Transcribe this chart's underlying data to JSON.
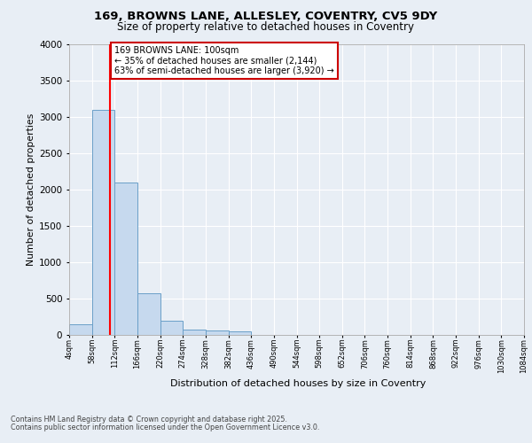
{
  "title_line1": "169, BROWNS LANE, ALLESLEY, COVENTRY, CV5 9DY",
  "title_line2": "Size of property relative to detached houses in Coventry",
  "xlabel": "Distribution of detached houses by size in Coventry",
  "ylabel": "Number of detached properties",
  "footer_line1": "Contains HM Land Registry data © Crown copyright and database right 2025.",
  "footer_line2": "Contains public sector information licensed under the Open Government Licence v3.0.",
  "bar_edges": [
    4,
    58,
    112,
    166,
    220,
    274,
    328,
    382,
    436,
    490,
    544,
    598,
    652,
    706,
    760,
    814,
    868,
    922,
    976,
    1030,
    1084
  ],
  "bar_heights": [
    140,
    3100,
    2090,
    570,
    195,
    70,
    50,
    40,
    0,
    0,
    0,
    0,
    0,
    0,
    0,
    0,
    0,
    0,
    0,
    0
  ],
  "bar_color": "#c6d9ee",
  "bar_edge_color": "#6a9fc8",
  "red_line_x": 100,
  "annotation_text": "169 BROWNS LANE: 100sqm\n← 35% of detached houses are smaller (2,144)\n63% of semi-detached houses are larger (3,920) →",
  "annotation_box_facecolor": "#ffffff",
  "annotation_box_edgecolor": "#cc0000",
  "ylim_max": 4000,
  "yticks": [
    0,
    500,
    1000,
    1500,
    2000,
    2500,
    3000,
    3500,
    4000
  ],
  "background_color": "#e8eef5",
  "grid_color": "#ffffff",
  "tick_labels": [
    "4sqm",
    "58sqm",
    "112sqm",
    "166sqm",
    "220sqm",
    "274sqm",
    "328sqm",
    "382sqm",
    "436sqm",
    "490sqm",
    "544sqm",
    "598sqm",
    "652sqm",
    "706sqm",
    "760sqm",
    "814sqm",
    "868sqm",
    "922sqm",
    "976sqm",
    "1030sqm",
    "1084sqm"
  ]
}
